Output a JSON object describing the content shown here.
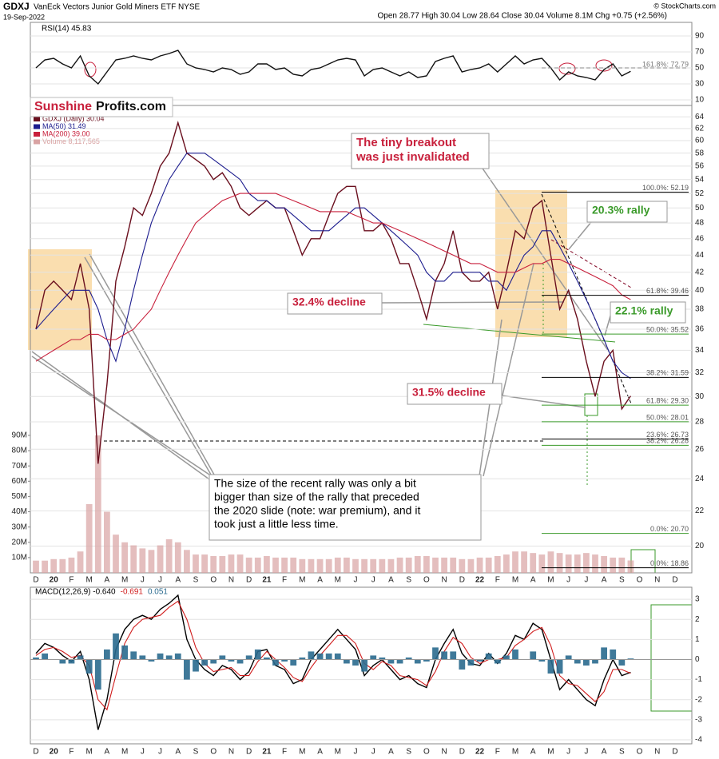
{
  "chart_data": [
    {
      "type": "line",
      "series": [
        {
          "name": "RSI(14) 45.83",
          "color": "#111111",
          "values": [
            50,
            60,
            62,
            55,
            50,
            65,
            40,
            30,
            45,
            60,
            62,
            65,
            62,
            60,
            65,
            68,
            72,
            55,
            50,
            48,
            45,
            50,
            48,
            42,
            45,
            55,
            55,
            48,
            50,
            42,
            40,
            48,
            50,
            55,
            60,
            62,
            60,
            40,
            48,
            50,
            45,
            40,
            45,
            38,
            40,
            58,
            62,
            65,
            45,
            48,
            50,
            55,
            45,
            55,
            65,
            55,
            60,
            62,
            50,
            35,
            45,
            40,
            38,
            35,
            48,
            55,
            40,
            45.83,
            null,
            null,
            null,
            null,
            null
          ]
        }
      ],
      "ylim": [
        3,
        107
      ],
      "yticks": [
        10,
        30,
        50,
        70,
        90
      ],
      "grid": true,
      "fib_label": "161.8%: 72.79"
    },
    {
      "type": "line",
      "title": "GDXJ",
      "subtitle": "VanEck Vectors Junior Gold Miners ETF NYSE",
      "date": "19-Sep-2022",
      "quote": "Open 28.77 High 30.04 Low 28.64 Close 30.04 Volume 8.1M Chg +0.75 (+2.56%)",
      "source": "© StockCharts.com",
      "logo": [
        "Sunshine",
        "Profits.com"
      ],
      "categories": [
        "D",
        null,
        "20",
        null,
        "F",
        null,
        "M",
        null,
        "A",
        null,
        "M",
        null,
        "J",
        null,
        "J",
        null,
        "A",
        null,
        "S",
        null,
        "O",
        null,
        "N",
        null,
        "D",
        null,
        "21",
        null,
        "F",
        null,
        "M",
        null,
        "A",
        null,
        "M",
        null,
        "J",
        null,
        "J",
        null,
        "A",
        null,
        "S",
        null,
        "O",
        null,
        "N",
        null,
        "D",
        null,
        "22",
        null,
        "F",
        null,
        "M",
        null,
        "A",
        null,
        "M",
        null,
        "J",
        null,
        "J",
        null,
        "A",
        null,
        "S",
        null,
        "O",
        null,
        "N",
        null,
        "D"
      ],
      "series": [
        {
          "name": "GDXJ (Daily) 30.04",
          "color": "#6a0f1e",
          "values": [
            36,
            40,
            41,
            40,
            39,
            43,
            38,
            25,
            31,
            41,
            45,
            50,
            49,
            52,
            56,
            58,
            63,
            58,
            57,
            56,
            54,
            55,
            53,
            50,
            49,
            50,
            51,
            50,
            50,
            47,
            44,
            46,
            46,
            49,
            52,
            53,
            53,
            47,
            47,
            48,
            46,
            43,
            43,
            40,
            37,
            41,
            43,
            47,
            42,
            41,
            41,
            42,
            38,
            42,
            47,
            46,
            50,
            51,
            44,
            38,
            40,
            37,
            33,
            30,
            33,
            34,
            29,
            30.04,
            null,
            null,
            null,
            null,
            null
          ]
        },
        {
          "name": "MA(50) 31.49",
          "color": "#1c1c8e",
          "values": [
            36,
            37,
            38,
            39,
            40,
            40,
            40,
            38,
            35,
            33,
            36,
            40,
            44,
            48,
            51,
            54,
            56,
            58,
            58,
            58,
            57,
            56,
            55,
            54,
            52,
            51,
            51,
            50,
            50,
            49,
            48,
            47,
            47,
            47,
            48,
            49,
            50,
            50,
            49,
            48,
            47,
            46,
            45,
            44,
            42,
            41,
            41,
            42,
            42,
            42,
            42,
            41,
            41,
            40,
            42,
            44,
            45,
            47,
            47,
            45,
            43,
            41,
            39,
            37,
            35,
            33,
            32,
            31.49,
            null,
            null,
            null,
            null,
            null
          ]
        },
        {
          "name": "MA(200) 39.00",
          "color": "#c8203c",
          "values": [
            33,
            33.5,
            34,
            34.5,
            35,
            35,
            35.5,
            35.5,
            35,
            35,
            35.5,
            36,
            37,
            38,
            40,
            42,
            44,
            46,
            48,
            49,
            50,
            51,
            51.5,
            52,
            52,
            52,
            52,
            52,
            51.5,
            51,
            50.5,
            50,
            49.5,
            49.5,
            49.5,
            49.5,
            49,
            48.5,
            48,
            48,
            47.5,
            47,
            46.5,
            46,
            45.5,
            45,
            44.5,
            44,
            43.5,
            43,
            43,
            42.5,
            42,
            42,
            42,
            42.5,
            43,
            43,
            43.5,
            43.5,
            43,
            42.5,
            42,
            41.5,
            41,
            40.5,
            39.5,
            39.0,
            null,
            null,
            null,
            null,
            null
          ]
        },
        {
          "name": "Volume 8,117,565",
          "type": "bar",
          "axis": "y2",
          "color": "#d9a3a3",
          "values": [
            8,
            8,
            9,
            9,
            10,
            14,
            45,
            90,
            40,
            25,
            20,
            18,
            16,
            15,
            18,
            22,
            20,
            15,
            12,
            12,
            11,
            11,
            12,
            12,
            10,
            10,
            11,
            10,
            10,
            10,
            9,
            9,
            9,
            9,
            10,
            10,
            9,
            9,
            9,
            9,
            9,
            10,
            10,
            11,
            11,
            10,
            10,
            10,
            9,
            9,
            10,
            10,
            11,
            12,
            14,
            14,
            13,
            12,
            14,
            13,
            12,
            12,
            13,
            12,
            11,
            10,
            10,
            8.117565,
            null,
            null,
            null,
            null,
            null
          ]
        }
      ],
      "ylim": [
        18.6,
        66
      ],
      "log_scale": true,
      "yticks": [
        20,
        22,
        24,
        26,
        28,
        30,
        32,
        34,
        36,
        38,
        40,
        42,
        44,
        46,
        48,
        50,
        52,
        54,
        56,
        58,
        60,
        62,
        64
      ],
      "y2lim": [
        0,
        306
      ],
      "y2ticks": [
        {
          "value": 10,
          "label": "10M"
        },
        {
          "value": 20,
          "label": "20M"
        },
        {
          "value": 30,
          "label": "30M"
        },
        {
          "value": 40,
          "label": "40M"
        },
        {
          "value": 50,
          "label": "50M"
        },
        {
          "value": 60,
          "label": "60M"
        },
        {
          "value": 70,
          "label": "70M"
        },
        {
          "value": 80,
          "label": "80M"
        },
        {
          "value": 90,
          "label": "90M"
        }
      ],
      "grid": true,
      "fib_levels": [
        {
          "value": 52.19,
          "label": "100.0%: 52.19",
          "color": "#000000"
        },
        {
          "value": 39.46,
          "label": "61.8%: 39.46",
          "color": "#000000"
        },
        {
          "value": 35.52,
          "label": "50.0%: 35.52",
          "color": "#3a9a2a"
        },
        {
          "value": 31.59,
          "label": "38.2%: 31.59",
          "color": "#000000"
        },
        {
          "value": 29.3,
          "label": "61.8%: 29.30",
          "color": "#3a9a2a"
        },
        {
          "value": 28.01,
          "label": "50.0%: 28.01",
          "color": "#3a9a2a"
        },
        {
          "value": 26.73,
          "label": "23.6%: 26.73",
          "color": "#000000"
        },
        {
          "value": 26.28,
          "label": "38.2%: 26.28",
          "color": "#3a9a2a"
        },
        {
          "value": 20.7,
          "label": "0.0%: 20.70",
          "color": "#3a9a2a"
        },
        {
          "value": 18.86,
          "label": "0.0%: 18.86",
          "color": "#000000"
        }
      ],
      "annotations": [
        {
          "lines": [
            "The tiny breakout",
            "was just invalidated"
          ],
          "color": "#c8203c"
        },
        {
          "lines": [
            "20.3% rally"
          ],
          "color": "#3a9a2a"
        },
        {
          "lines": [
            "22.1% rally"
          ],
          "color": "#3a9a2a"
        },
        {
          "lines": [
            "32.4% decline"
          ],
          "color": "#c8203c"
        },
        {
          "lines": [
            "31.5% decline"
          ],
          "color": "#c8203c"
        },
        {
          "lines": [
            "The size of the recent rally was only a bit",
            "bigger than size of the rally that preceded",
            "the 2020 slide (note: war premium), and it",
            "took just a little less time."
          ],
          "color": "#000000"
        }
      ]
    },
    {
      "type": "line",
      "series": [
        {
          "name": "MACD(12,26,9) -0.640",
          "color": "#000000",
          "values": [
            0.3,
            0.8,
            0.6,
            0.2,
            -0.1,
            0.4,
            -1,
            -3.5,
            -2,
            0.5,
            1.5,
            2,
            2.2,
            2,
            2.5,
            2.8,
            3.2,
            1,
            0,
            -0.5,
            -0.8,
            -0.3,
            -0.5,
            -1,
            -0.6,
            0.4,
            0.5,
            -0.3,
            -0.5,
            -1.2,
            -1,
            0,
            0.5,
            1,
            1.5,
            1,
            0.5,
            -0.8,
            -0.3,
            0,
            -0.5,
            -1,
            -0.8,
            -1.2,
            -1.4,
            0,
            0.8,
            1.5,
            0.3,
            -0.2,
            -0.3,
            0.3,
            -0.2,
            0.3,
            1.2,
            1,
            1.8,
            1.5,
            0,
            -1.5,
            -1,
            -1.5,
            -2,
            -2.3,
            -1,
            0,
            -0.8,
            -0.64,
            null,
            null,
            null,
            null,
            null
          ]
        },
        {
          "name": "-0.691",
          "color": "#d01c1c",
          "values": [
            0.2,
            0.5,
            0.6,
            0.4,
            0.1,
            0.2,
            -0.3,
            -2,
            -2.5,
            -0.8,
            0.8,
            1.6,
            2,
            2.1,
            2.2,
            2.6,
            2.9,
            2,
            0.6,
            -0.2,
            -0.6,
            -0.5,
            -0.4,
            -0.8,
            -0.8,
            -0.1,
            0.4,
            0,
            -0.4,
            -0.9,
            -1.1,
            -0.4,
            0.2,
            0.7,
            1.2,
            1.2,
            0.8,
            -0.2,
            -0.5,
            -0.1,
            -0.3,
            -0.8,
            -0.9,
            -1,
            -1.3,
            -0.6,
            0.4,
            1.1,
            0.8,
            0.1,
            -0.2,
            0,
            0,
            0.1,
            0.7,
            1,
            1.4,
            1.6,
            0.7,
            -0.8,
            -1.2,
            -1.3,
            -1.7,
            -2.1,
            -1.6,
            -0.5,
            -0.5,
            -0.691,
            null,
            null,
            null,
            null,
            null
          ]
        },
        {
          "name": "0.051",
          "type": "bar",
          "color": "#2a6a8e",
          "values": [
            0.1,
            0.3,
            0,
            -0.2,
            -0.2,
            0.2,
            -0.7,
            -1.5,
            0.5,
            1.3,
            0.7,
            0.4,
            0.2,
            -0.1,
            0.3,
            0.2,
            0.3,
            -1,
            -0.6,
            -0.3,
            -0.2,
            0.2,
            -0.1,
            -0.2,
            0.2,
            0.5,
            0.1,
            -0.3,
            -0.1,
            -0.3,
            0.1,
            0.4,
            0.3,
            0.3,
            0.3,
            -0.2,
            -0.3,
            -0.6,
            0.2,
            0.1,
            -0.2,
            -0.2,
            0.1,
            -0.2,
            -0.1,
            0.6,
            0.4,
            0.4,
            -0.5,
            -0.3,
            -0.1,
            0.3,
            -0.2,
            0.2,
            0.5,
            0,
            0.4,
            -0.1,
            -0.7,
            -0.7,
            0.2,
            -0.2,
            -0.3,
            -0.2,
            0.6,
            0.5,
            -0.3,
            0.051,
            null,
            null,
            null,
            null,
            null
          ]
        }
      ],
      "ylim": [
        -4.2,
        3.6
      ],
      "yticks": [
        -4,
        -3,
        -2,
        -1,
        0,
        1,
        2,
        3
      ],
      "grid": true
    }
  ]
}
